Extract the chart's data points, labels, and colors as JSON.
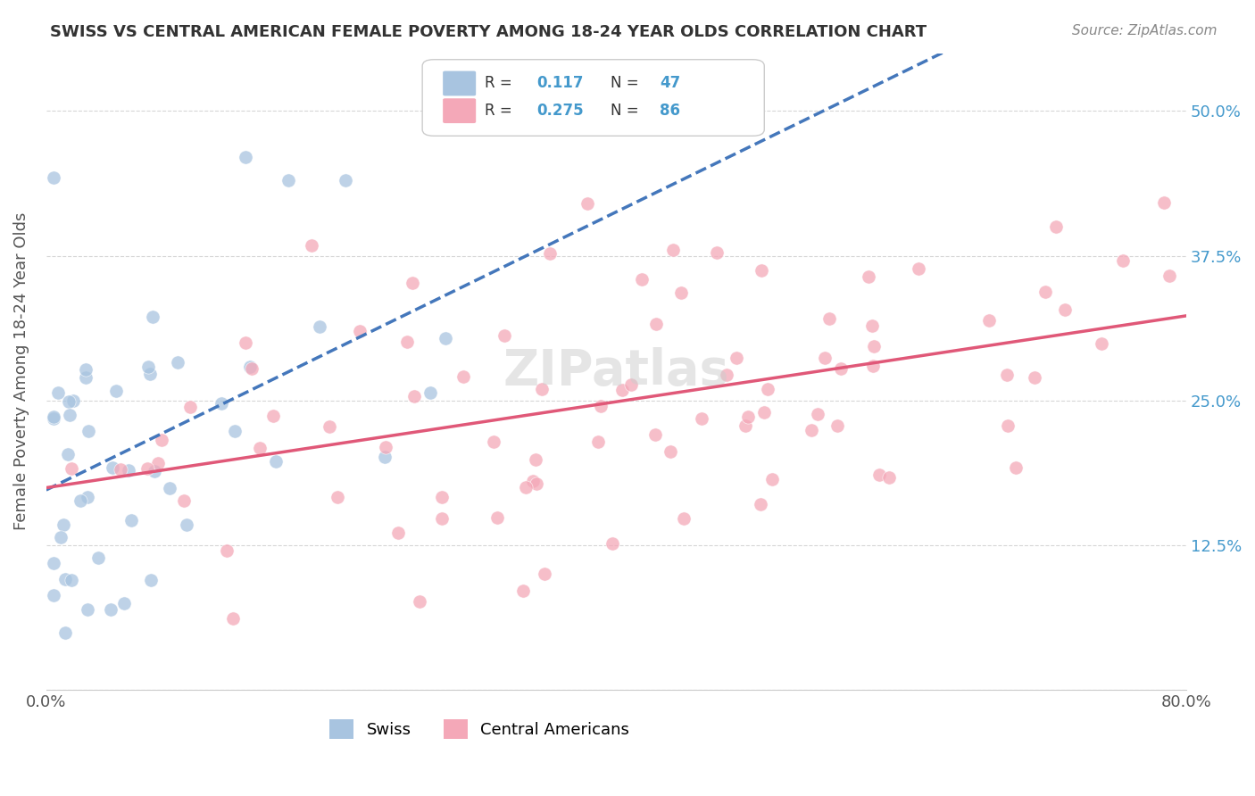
{
  "title": "SWISS VS CENTRAL AMERICAN FEMALE POVERTY AMONG 18-24 YEAR OLDS CORRELATION CHART",
  "source": "Source: ZipAtlas.com",
  "ylabel": "Female Poverty Among 18-24 Year Olds",
  "ytick_labels": [
    "",
    "12.5%",
    "25.0%",
    "37.5%",
    "50.0%"
  ],
  "ytick_values": [
    0,
    0.125,
    0.25,
    0.375,
    0.5
  ],
  "xmin": 0.0,
  "xmax": 0.8,
  "ymin": 0.0,
  "ymax": 0.55,
  "swiss_R": 0.117,
  "swiss_N": 47,
  "ca_R": 0.275,
  "ca_N": 86,
  "swiss_color": "#a8c4e0",
  "ca_color": "#f4a8b8",
  "swiss_line_color": "#4477bb",
  "ca_line_color": "#e05878",
  "legend_swiss_label": "Swiss",
  "legend_ca_label": "Central Americans",
  "background_color": "#ffffff",
  "grid_color": "#cccccc",
  "title_color": "#333333"
}
